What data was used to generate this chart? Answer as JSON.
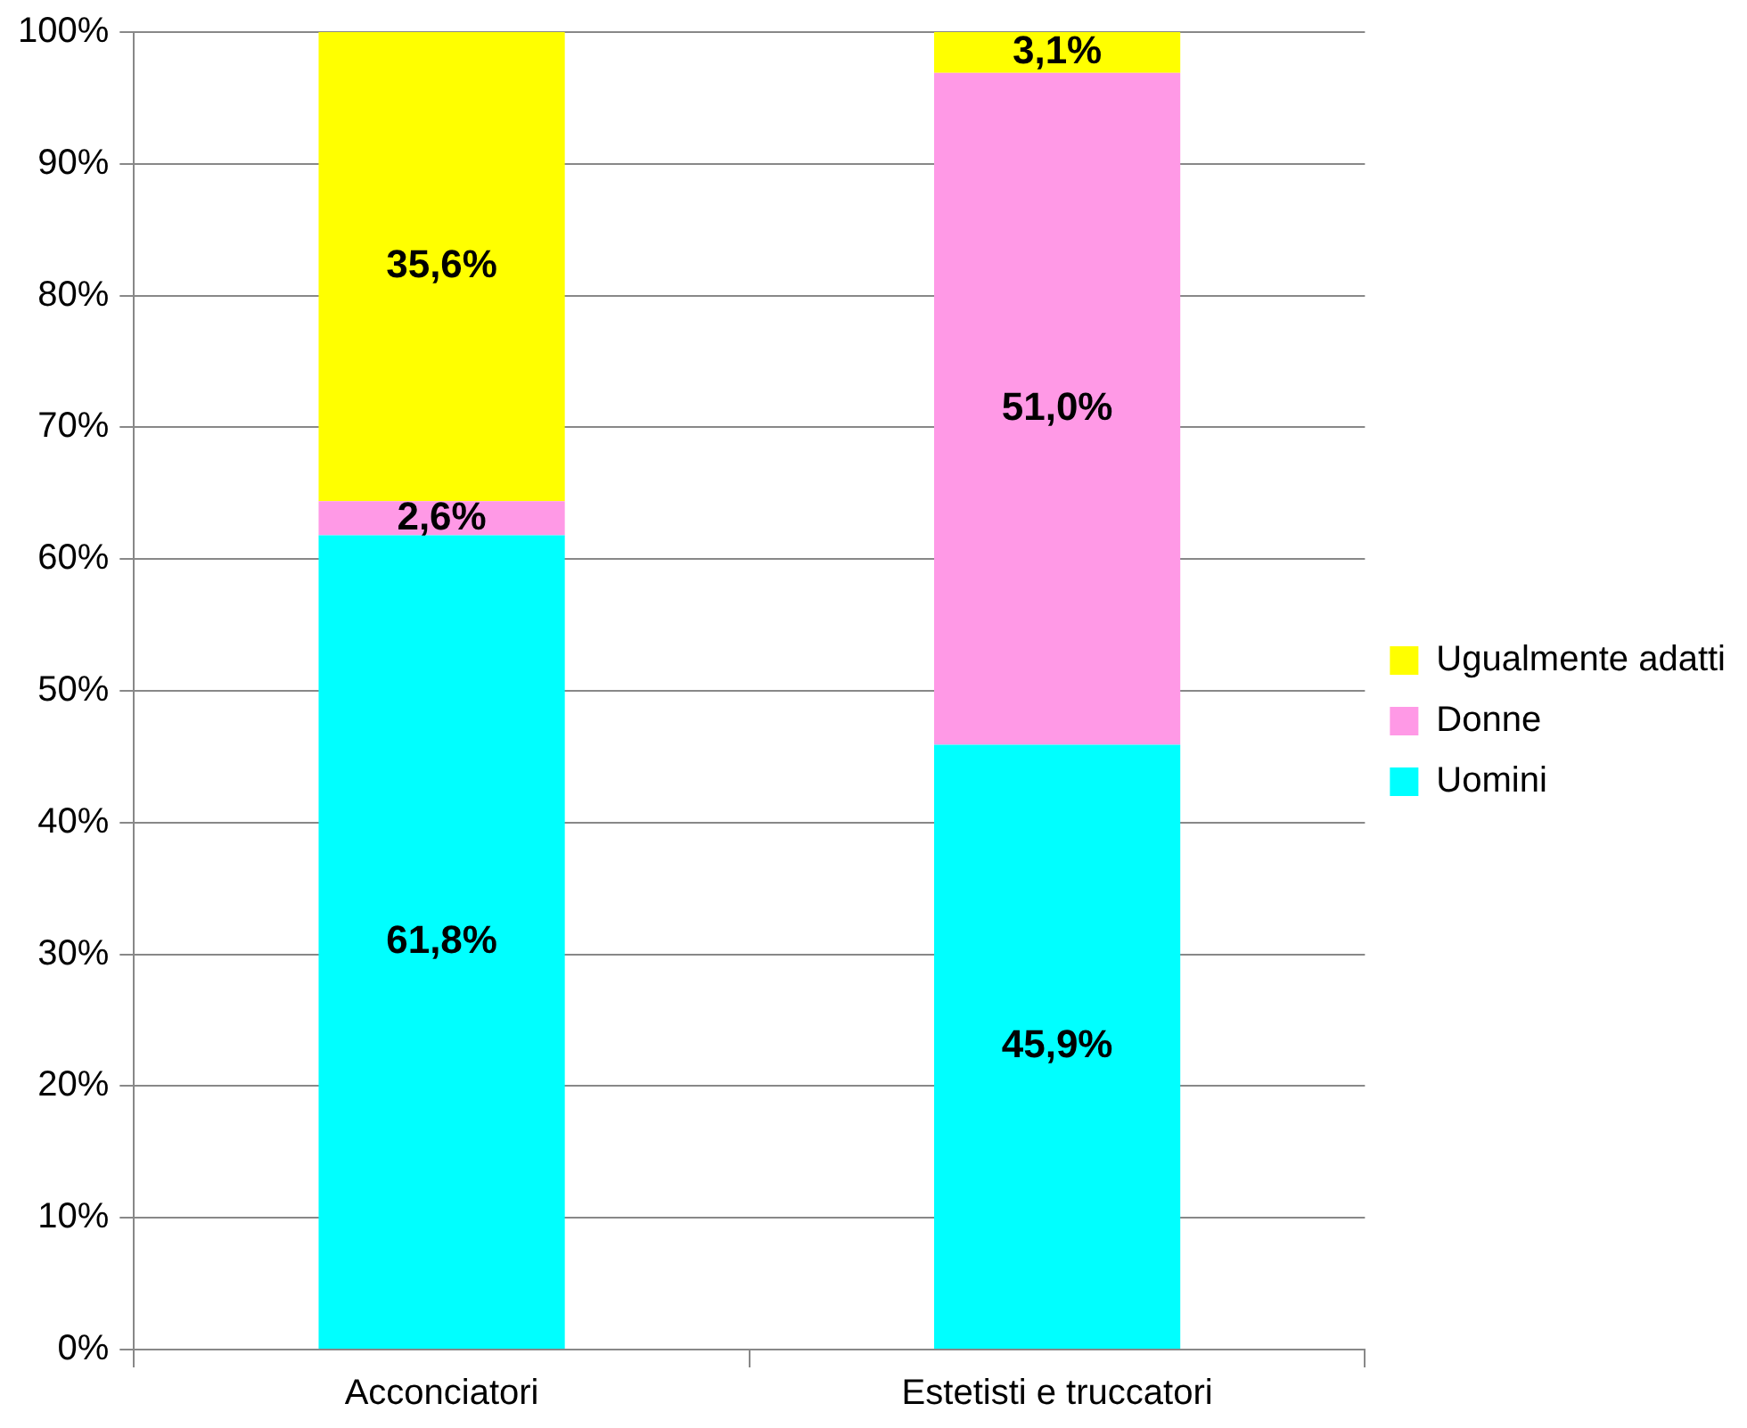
{
  "chart_data": {
    "type": "bar",
    "stacked": true,
    "categories": [
      "Acconciatori",
      "Estetisti e truccatori"
    ],
    "series": [
      {
        "name": "Uomini",
        "color": "#00ffff",
        "values": [
          61.8,
          45.9
        ],
        "value_labels": [
          "61,8%",
          "45,9%"
        ]
      },
      {
        "name": "Donne",
        "color": "#ff99e6",
        "values": [
          2.6,
          51.0
        ],
        "value_labels": [
          "2,6%",
          "51,0%"
        ]
      },
      {
        "name": "Ugualmente adatti",
        "color": "#ffff00",
        "values": [
          35.6,
          3.1
        ],
        "value_labels": [
          "35,6%",
          "3,1%"
        ]
      }
    ],
    "ylim": [
      0,
      100
    ],
    "yticks": [
      {
        "value": 0,
        "label": "0%"
      },
      {
        "value": 10,
        "label": "10%"
      },
      {
        "value": 20,
        "label": "20%"
      },
      {
        "value": 30,
        "label": "30%"
      },
      {
        "value": 40,
        "label": "40%"
      },
      {
        "value": 50,
        "label": "50%"
      },
      {
        "value": 60,
        "label": "60%"
      },
      {
        "value": 70,
        "label": "70%"
      },
      {
        "value": 80,
        "label": "80%"
      },
      {
        "value": 90,
        "label": "90%"
      },
      {
        "value": 100,
        "label": "100%"
      }
    ],
    "grid": "y",
    "legend": "right"
  }
}
